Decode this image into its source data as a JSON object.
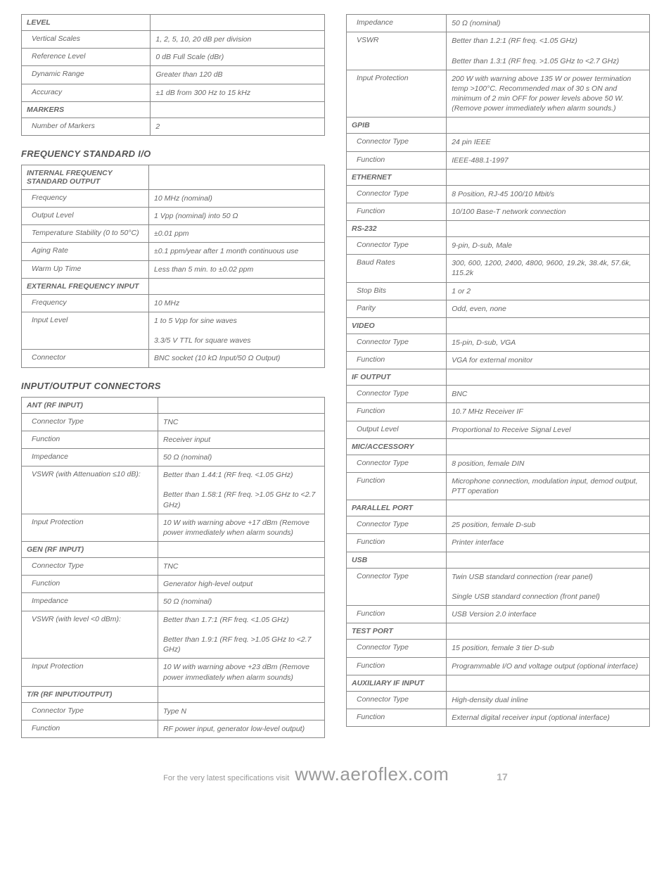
{
  "left": {
    "level": {
      "header": "LEVEL",
      "rows": [
        [
          "Vertical Scales",
          "1, 2, 5, 10, 20 dB per division"
        ],
        [
          "Reference Level",
          "0 dB Full Scale (dBr)"
        ],
        [
          "Dynamic Range",
          "Greater than 120 dB"
        ],
        [
          "Accuracy",
          "±1 dB from 300 Hz to 15 kHz"
        ]
      ],
      "markers_header": "MARKERS",
      "markers_rows": [
        [
          "Number of Markers",
          "2"
        ]
      ]
    },
    "freq_std_heading": "FREQUENCY STANDARD I/O",
    "freq_std": {
      "internal_header": "INTERNAL FREQUENCY STANDARD OUTPUT",
      "internal_rows": [
        [
          "Frequency",
          "10 MHz (nominal)"
        ],
        [
          "Output Level",
          "1 Vpp (nominal) into 50 Ω"
        ],
        [
          "Temperature Stability (0 to 50°C)",
          "±0.01 ppm"
        ],
        [
          "Aging Rate",
          "±0.1 ppm/year after 1 month continuous use"
        ],
        [
          "Warm Up Time",
          "Less than 5 min. to ±0.02 ppm"
        ]
      ],
      "external_header": "EXTERNAL FREQUENCY INPUT",
      "external_rows": [
        [
          "Frequency",
          "10 MHz"
        ],
        [
          "Input Level",
          "1 to 5 Vpp for sine waves\n3.3/5 V TTL for square waves"
        ],
        [
          "Connector",
          "BNC socket (10 kΩ Input/50 Ω Output)"
        ]
      ]
    },
    "io_heading": "INPUT/OUTPUT CONNECTORS",
    "io": {
      "ant_header": "ANT (RF INPUT)",
      "ant_rows": [
        [
          "Connector Type",
          "TNC"
        ],
        [
          "Function",
          "Receiver input"
        ],
        [
          "Impedance",
          "50 Ω (nominal)"
        ],
        [
          "VSWR (with Attenuation ≤10 dB):",
          "Better than 1.44:1 (RF freq. <1.05 GHz)\nBetter than 1.58:1 (RF freq. >1.05 GHz to <2.7 GHz)"
        ],
        [
          "Input Protection",
          "10 W with warning above +17 dBm (Remove power immediately when alarm sounds)"
        ]
      ],
      "gen_header": "GEN (RF INPUT)",
      "gen_rows": [
        [
          "Connector Type",
          "TNC"
        ],
        [
          "Function",
          "Generator high-level output"
        ],
        [
          "Impedance",
          "50 Ω (nominal)"
        ],
        [
          "VSWR (with level <0 dBm):",
          "Better than 1.7:1 (RF freq. <1.05 GHz)\nBetter than 1.9:1 (RF freq. >1.05 GHz to <2.7 GHz)"
        ],
        [
          "Input Protection",
          "10 W with warning above +23 dBm (Remove power immediately when alarm sounds)"
        ]
      ],
      "tr_header": "T/R (RF INPUT/OUTPUT)",
      "tr_rows": [
        [
          "Connector Type",
          "Type N"
        ],
        [
          "Function",
          "RF power input, generator low-level output)"
        ]
      ]
    }
  },
  "right": {
    "tr_cont_rows": [
      [
        "Impedance",
        "50 Ω (nominal)"
      ],
      [
        "VSWR",
        "Better than 1.2:1 (RF freq. <1.05 GHz)\nBetter than 1.3:1 (RF freq. >1.05 GHz to <2.7 GHz)"
      ],
      [
        "Input Protection",
        "200 W with warning above 135 W or power termination temp >100°C. Recommended max of 30 s ON and minimum of 2 min OFF for power levels above 50 W. (Remove power immediately when alarm sounds.)"
      ]
    ],
    "gpib_header": "GPIB",
    "gpib_rows": [
      [
        "Connector Type",
        "24 pin IEEE"
      ],
      [
        "Function",
        "IEEE-488.1-1997"
      ]
    ],
    "ethernet_header": "ETHERNET",
    "ethernet_rows": [
      [
        "Connector Type",
        "8 Position, RJ-45 100/10 Mbit/s"
      ],
      [
        "Function",
        "10/100 Base-T network connection"
      ]
    ],
    "rs232_header": "RS-232",
    "rs232_rows": [
      [
        "Connector Type",
        "9-pin, D-sub, Male"
      ],
      [
        "Baud Rates",
        "300, 600, 1200, 2400, 4800, 9600, 19.2k, 38.4k, 57.6k, 115.2k"
      ],
      [
        "Stop Bits",
        "1 or 2"
      ],
      [
        "Parity",
        "Odd, even, none"
      ]
    ],
    "video_header": "VIDEO",
    "video_rows": [
      [
        "Connector Type",
        "15-pin, D-sub, VGA"
      ],
      [
        "Function",
        "VGA for external monitor"
      ]
    ],
    "ifout_header": "IF OUTPUT",
    "ifout_rows": [
      [
        "Connector Type",
        "BNC"
      ],
      [
        "Function",
        "10.7 MHz Receiver IF"
      ],
      [
        "Output Level",
        "Proportional to Receive Signal Level"
      ]
    ],
    "mic_header": "MIC/ACCESSORY",
    "mic_rows": [
      [
        "Connector Type",
        "8 position, female DIN"
      ],
      [
        "Function",
        "Microphone connection, modulation input, demod output, PTT operation"
      ]
    ],
    "parallel_header": "PARALLEL PORT",
    "parallel_rows": [
      [
        "Connector Type",
        "25 position, female D-sub"
      ],
      [
        "Function",
        "Printer interface"
      ]
    ],
    "usb_header": "USB",
    "usb_rows": [
      [
        "Connector Type",
        "Twin USB standard connection (rear panel)\nSingle USB standard connection (front panel)"
      ],
      [
        "Function",
        "USB Version 2.0 interface"
      ]
    ],
    "test_header": "TEST PORT",
    "test_rows": [
      [
        "Connector Type",
        "15 position, female 3 tier D-sub"
      ],
      [
        "Function",
        "Programmable I/O and voltage output (optional interface)"
      ]
    ],
    "aux_header": "AUXILIARY IF INPUT",
    "aux_rows": [
      [
        "Connector Type",
        "High-density dual inline"
      ],
      [
        "Function",
        "External digital receiver input (optional interface)"
      ]
    ]
  },
  "footer": {
    "prefix": "For the very latest specifications visit",
    "url": "www.aeroflex.com",
    "page": "17"
  }
}
